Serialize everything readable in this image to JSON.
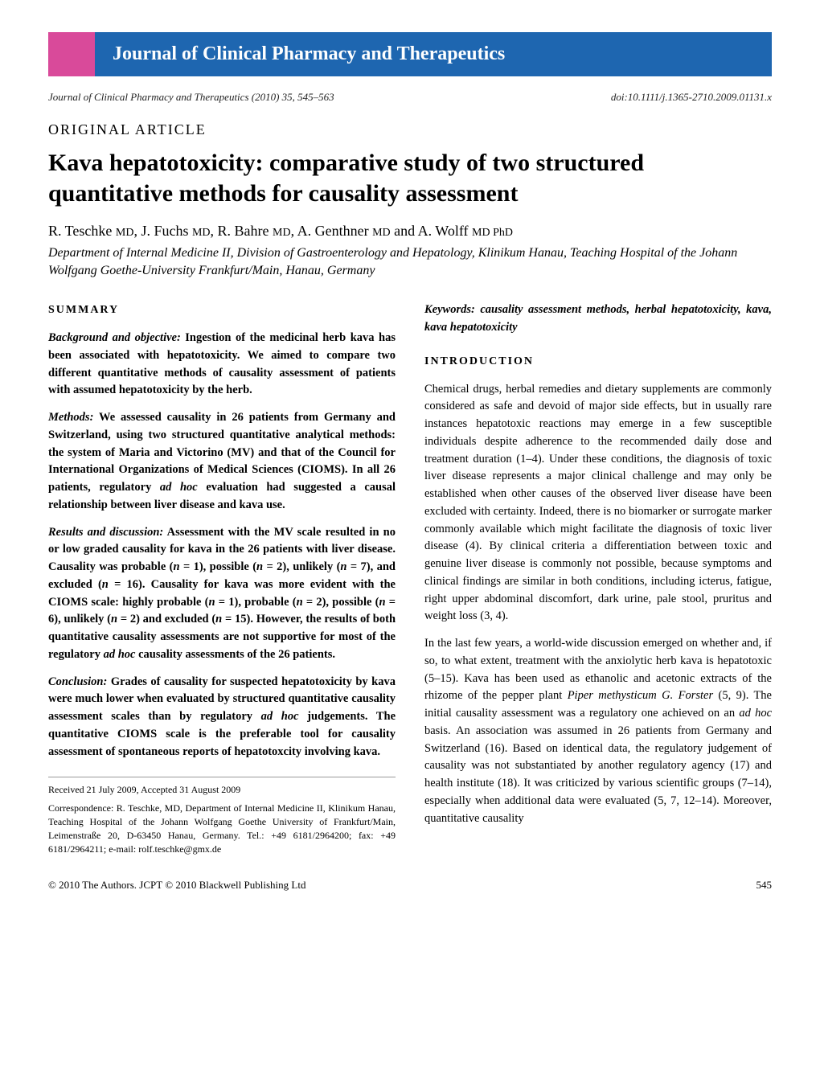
{
  "banner": {
    "journal_name": "Journal of Clinical Pharmacy and Therapeutics",
    "banner_bg": "#1e66b0",
    "square_bg": "#d94a9a"
  },
  "meta": {
    "citation": "Journal of Clinical Pharmacy and Therapeutics (2010) 35, 545–563",
    "doi": "doi:10.1111/j.1365-2710.2009.01131.x"
  },
  "article_type": "ORIGINAL ARTICLE",
  "title": "Kava hepatotoxicity: comparative study of two structured quantitative methods for causality assessment",
  "authors_line": "R. Teschke MD, J. Fuchs MD, R. Bahre MD, A. Genthner MD and A. Wolff MD PhD",
  "affiliation": "Department of Internal Medicine II, Division of Gastroenterology and Hepatology, Klinikum Hanau, Teaching Hospital of the Johann Wolfgang Goethe-University Frankfurt/Main, Hanau, Germany",
  "keywords": "Keywords: causality assessment methods, herbal hepatotoxicity, kava, kava hepatotoxicity",
  "summary": {
    "heading": "SUMMARY",
    "background": "Background and objective: Ingestion of the medicinal herb kava has been associated with hepatotoxicity. We aimed to compare two different quantitative methods of causality assessment of patients with assumed hepatotoxicity by the herb.",
    "methods": "Methods: We assessed causality in 26 patients from Germany and Switzerland, using two structured quantitative analytical methods: the system of Maria and Victorino (MV) and that of the Council for International Organizations of Medical Sciences (CIOMS). In all 26 patients, regulatory ad hoc evaluation had suggested a causal relationship between liver disease and kava use.",
    "results": "Results and discussion: Assessment with the MV scale resulted in no or low graded causality for kava in the 26 patients with liver disease. Causality was probable (n = 1), possible (n = 2), unlikely (n = 7), and excluded (n = 16). Causality for kava was more evident with the CIOMS scale: highly probable (n = 1), probable (n = 2), possible (n = 6), unlikely (n = 2) and excluded (n = 15). However, the results of both quantitative causality assessments are not supportive for most of the regulatory ad hoc causality assessments of the 26 patients.",
    "conclusion": "Conclusion: Grades of causality for suspected hepatotoxicity by kava were much lower when evaluated by structured quantitative causality assessment scales than by regulatory ad hoc judgements. The quantitative CIOMS scale is the preferable tool for causality assessment of spontaneous reports of hepatotoxcity involving kava."
  },
  "introduction": {
    "heading": "INTRODUCTION",
    "p1": "Chemical drugs, herbal remedies and dietary supplements are commonly considered as safe and devoid of major side effects, but in usually rare instances hepatotoxic reactions may emerge in a few susceptible individuals despite adherence to the recommended daily dose and treatment duration (1–4). Under these conditions, the diagnosis of toxic liver disease represents a major clinical challenge and may only be established when other causes of the observed liver disease have been excluded with certainty. Indeed, there is no biomarker or surrogate marker commonly available which might facilitate the diagnosis of toxic liver disease (4). By clinical criteria a differentiation between toxic and genuine liver disease is commonly not possible, because symptoms and clinical findings are similar in both conditions, including icterus, fatigue, right upper abdominal discomfort, dark urine, pale stool, pruritus and weight loss (3, 4).",
    "p2": "In the last few years, a world-wide discussion emerged on whether and, if so, to what extent, treatment with the anxiolytic herb kava is hepatotoxic (5–15). Kava has been used as ethanolic and acetonic extracts of the rhizome of the pepper plant Piper methysticum G. Forster (5, 9). The initial causality assessment was a regulatory one achieved on an ad hoc basis. An association was assumed in 26 patients from Germany and Switzerland (16). Based on identical data, the regulatory judgement of causality was not substantiated by another regulatory agency (17) and health institute (18). It was criticized by various scientific groups (7–14), especially when additional data were evaluated (5, 7, 12–14). Moreover, quantitative causality"
  },
  "received": "Received 21 July 2009, Accepted 31 August 2009",
  "correspondence": "Correspondence: R. Teschke, MD, Department of Internal Medicine II, Klinikum Hanau, Teaching Hospital of the Johann Wolfgang Goethe University of Frankfurt/Main, Leimenstraße 20, D-63450 Hanau, Germany. Tel.: +49 6181/2964200; fax: +49 6181/2964211; e-mail: rolf.teschke@gmx.de",
  "footer": {
    "copyright": "© 2010 The Authors. JCPT © 2010 Blackwell Publishing Ltd",
    "page": "545"
  },
  "typography": {
    "title_fontsize": 30,
    "body_fontsize": 14.5,
    "heading_fontsize": 14,
    "banner_fontsize": 24,
    "authors_fontsize": 18
  }
}
